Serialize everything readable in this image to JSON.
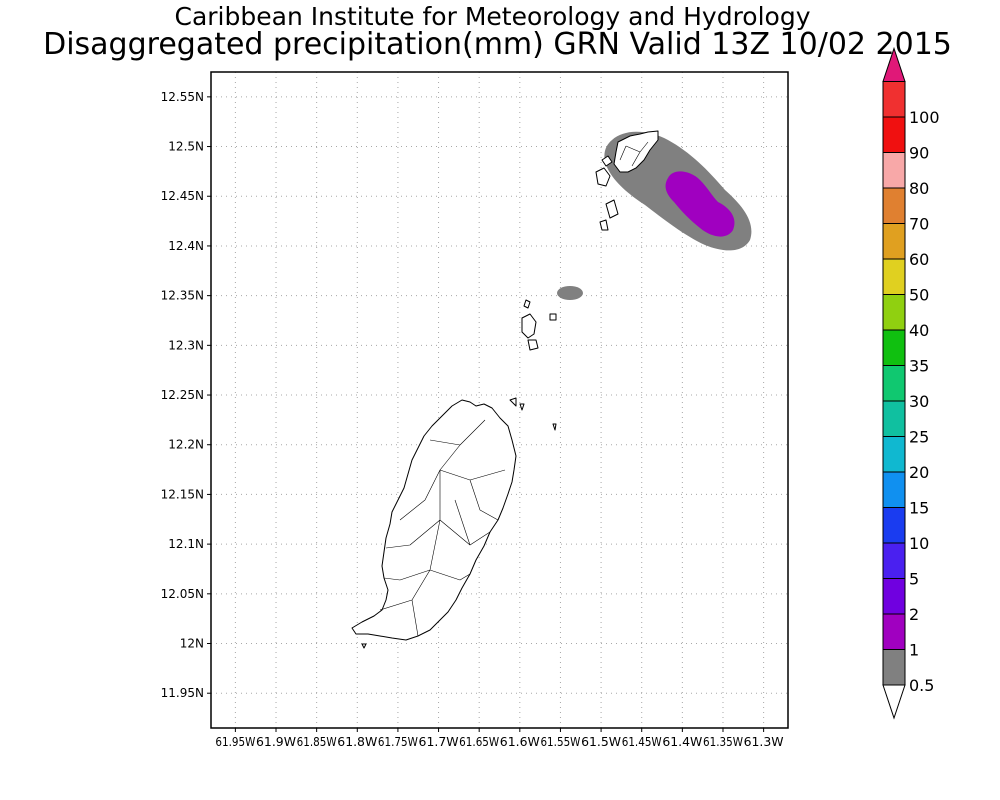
{
  "title": {
    "line1": "Caribbean Institute for Meteorology and Hydrology",
    "line2": "Disaggregated precipitation(mm) GRN Valid 13Z 10/02 2015"
  },
  "map": {
    "lon_range": [
      -61.98,
      -61.27
    ],
    "lat_range": [
      11.915,
      12.575
    ],
    "grid": "dotted",
    "lat_ticks": [
      {
        "value": 12.55,
        "label": "12.55N"
      },
      {
        "value": 12.5,
        "label": "12.5N"
      },
      {
        "value": 12.45,
        "label": "12.45N"
      },
      {
        "value": 12.4,
        "label": "12.4N"
      },
      {
        "value": 12.35,
        "label": "12.35N"
      },
      {
        "value": 12.3,
        "label": "12.3N"
      },
      {
        "value": 12.25,
        "label": "12.25N"
      },
      {
        "value": 12.2,
        "label": "12.2N"
      },
      {
        "value": 12.15,
        "label": "12.15N"
      },
      {
        "value": 12.1,
        "label": "12.1N"
      },
      {
        "value": 12.05,
        "label": "12.05N"
      },
      {
        "value": 12.0,
        "label": "12N"
      },
      {
        "value": 11.95,
        "label": "11.95N"
      }
    ],
    "lon_ticks": [
      {
        "value": -61.95,
        "label": "61.95W"
      },
      {
        "value": -61.9,
        "label": "61.9W"
      },
      {
        "value": -61.85,
        "label": "61.85W"
      },
      {
        "value": -61.8,
        "label": "61.8W"
      },
      {
        "value": -61.75,
        "label": "61.75W"
      },
      {
        "value": -61.7,
        "label": "61.7W"
      },
      {
        "value": -61.65,
        "label": "61.65W"
      },
      {
        "value": -61.6,
        "label": "61.6W"
      },
      {
        "value": -61.55,
        "label": "61.55W"
      },
      {
        "value": -61.5,
        "label": "61.5W"
      },
      {
        "value": -61.45,
        "label": "61.45W"
      },
      {
        "value": -61.4,
        "label": "61.4W"
      },
      {
        "value": -61.35,
        "label": "61.35W"
      },
      {
        "value": -61.3,
        "label": "61.3W"
      }
    ]
  },
  "colorbar": {
    "levels": [
      {
        "label": "0.5",
        "color": "#808080"
      },
      {
        "label": "1",
        "color": "#a000c0"
      },
      {
        "label": "2",
        "color": "#7000e0"
      },
      {
        "label": "5",
        "color": "#4a20f0"
      },
      {
        "label": "10",
        "color": "#1a3cf0"
      },
      {
        "label": "15",
        "color": "#1090f0"
      },
      {
        "label": "20",
        "color": "#10b8d0"
      },
      {
        "label": "25",
        "color": "#10c0a0"
      },
      {
        "label": "30",
        "color": "#10c870"
      },
      {
        "label": "35",
        "color": "#10c010"
      },
      {
        "label": "40",
        "color": "#90d010"
      },
      {
        "label": "50",
        "color": "#e0d020"
      },
      {
        "label": "60",
        "color": "#e0a020"
      },
      {
        "label": "70",
        "color": "#e08030"
      },
      {
        "label": "80",
        "color": "#f8a8a8"
      },
      {
        "label": "90",
        "color": "#f01010"
      },
      {
        "label": "100",
        "color": "#f03030"
      }
    ],
    "top_arrow_color": "#e01878",
    "bottom_arrow_color": "#ffffff"
  },
  "precip_areas": [
    {
      "level": "0.5-1 mm",
      "color": "#808080",
      "lon": -61.4,
      "lat": 12.445
    },
    {
      "level": "1-2 mm",
      "color": "#a000c0",
      "lon": -61.37,
      "lat": 12.425
    },
    {
      "level": "0.5-1 mm",
      "color": "#808080",
      "lon": -61.525,
      "lat": 12.338
    }
  ]
}
